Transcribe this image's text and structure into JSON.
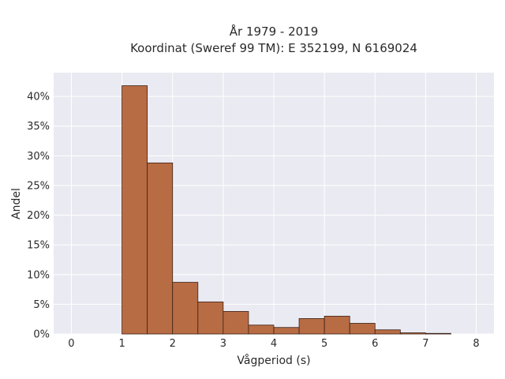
{
  "chart_data": {
    "type": "bar",
    "title": "År 1979 - 2019",
    "subtitle": "Koordinat (Sweref 99 TM): E 352199, N 6169024",
    "xlabel": "Vågperiod (s)",
    "ylabel": "Andel",
    "xlim": [
      -0.35,
      8.35
    ],
    "ylim": [
      0,
      44
    ],
    "x_ticks": [
      0,
      1,
      2,
      3,
      4,
      5,
      6,
      7,
      8
    ],
    "x_tick_labels": [
      "0",
      "1",
      "2",
      "3",
      "4",
      "5",
      "6",
      "7",
      "8"
    ],
    "y_ticks": [
      0,
      5,
      10,
      15,
      20,
      25,
      30,
      35,
      40
    ],
    "y_tick_labels": [
      "0%",
      "5%",
      "10%",
      "15%",
      "20%",
      "25%",
      "30%",
      "35%",
      "40%"
    ],
    "bin_width": 0.5,
    "bins": [
      {
        "x0": 1.0,
        "value": 41.8
      },
      {
        "x0": 1.5,
        "value": 28.8
      },
      {
        "x0": 2.0,
        "value": 8.7
      },
      {
        "x0": 2.5,
        "value": 5.4
      },
      {
        "x0": 3.0,
        "value": 3.8
      },
      {
        "x0": 3.5,
        "value": 1.5
      },
      {
        "x0": 4.0,
        "value": 1.1
      },
      {
        "x0": 4.5,
        "value": 2.6
      },
      {
        "x0": 5.0,
        "value": 3.0
      },
      {
        "x0": 5.5,
        "value": 1.8
      },
      {
        "x0": 6.0,
        "value": 0.7
      },
      {
        "x0": 6.5,
        "value": 0.2
      },
      {
        "x0": 7.0,
        "value": 0.1
      }
    ],
    "grid": true,
    "colors": {
      "bar_fill": "#b5653a",
      "bar_stroke": "#3a2216",
      "plot_bg": "#eaeaf2",
      "grid": "#ffffff"
    }
  }
}
